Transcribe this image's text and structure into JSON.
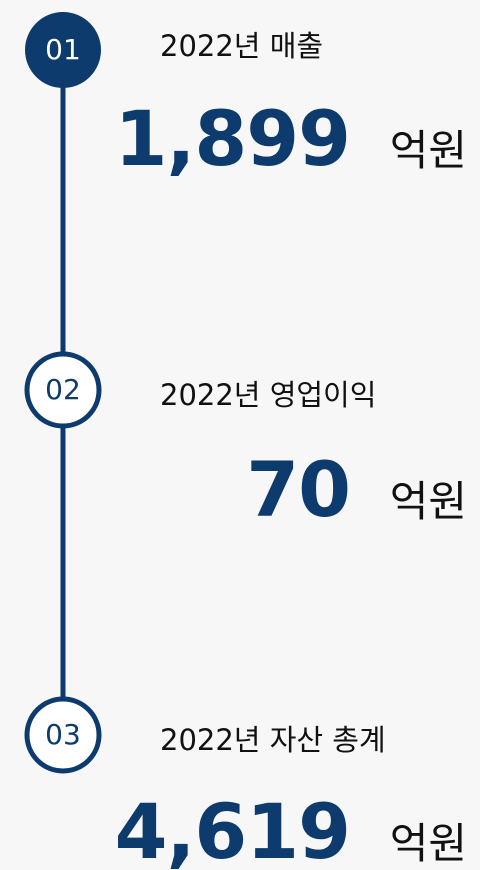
{
  "items": [
    {
      "step": "01",
      "title": "2022년 매출",
      "value": "1,899",
      "unit": "억원"
    },
    {
      "step": "02",
      "title": "2022년 영업이익",
      "value": "70",
      "unit": "억원"
    },
    {
      "step": "03",
      "title": "2022년 자산 총계",
      "value": "4,619",
      "unit": "억원"
    }
  ]
}
